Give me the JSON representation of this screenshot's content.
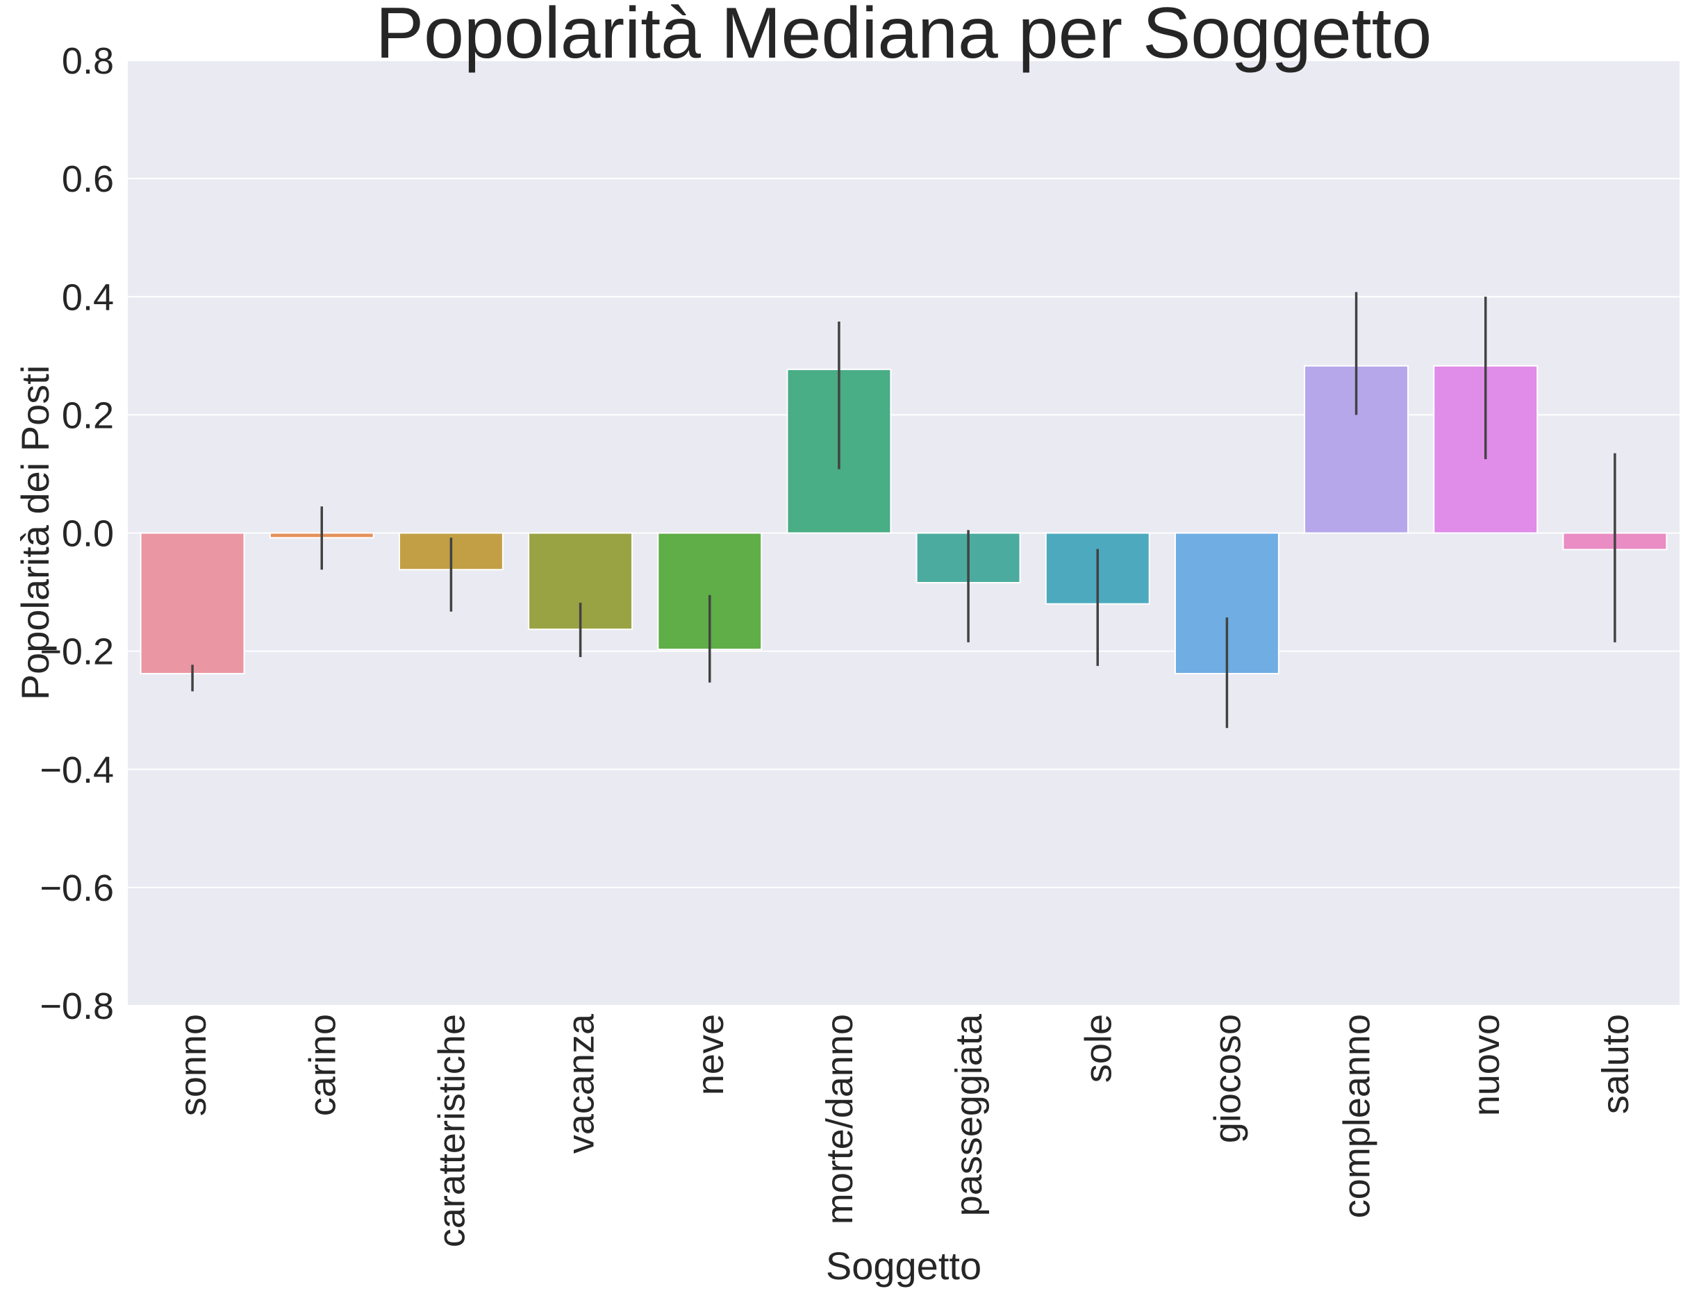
{
  "chart_data": {
    "type": "bar",
    "title": "Popolarità Mediana per Soggetto",
    "xlabel": "Soggetto",
    "ylabel": "Popolarità dei Posti",
    "ylim": [
      -0.8,
      0.8
    ],
    "yticks": [
      0.8,
      0.6,
      0.4,
      0.2,
      0.0,
      -0.2,
      -0.4,
      -0.6,
      -0.8
    ],
    "ytick_labels": [
      "0.8",
      "0.6",
      "0.4",
      "0.2",
      "0.0",
      "−0.2",
      "−0.4",
      "−0.6",
      "−0.8"
    ],
    "grid": true,
    "categories": [
      "sonno",
      "carino",
      "caratteristiche",
      "vacanza",
      "neve",
      "morte/danno",
      "passeggiata",
      "sole",
      "giocoso",
      "compleanno",
      "nuovo",
      "saluto"
    ],
    "values": [
      -0.238,
      -0.008,
      -0.062,
      -0.163,
      -0.197,
      0.277,
      -0.084,
      -0.12,
      -0.238,
      0.283,
      0.283,
      -0.028
    ],
    "error_bars": [
      [
        -0.268,
        -0.223
      ],
      [
        -0.062,
        0.045
      ],
      [
        -0.133,
        -0.008
      ],
      [
        -0.21,
        -0.118
      ],
      [
        -0.253,
        -0.105
      ],
      [
        0.108,
        0.358
      ],
      [
        -0.185,
        0.005
      ],
      [
        -0.225,
        -0.027
      ],
      [
        -0.33,
        -0.143
      ],
      [
        0.2,
        0.408
      ],
      [
        0.125,
        0.4
      ],
      [
        -0.185,
        0.135
      ]
    ],
    "colors": [
      "#ea96a3",
      "#e5915b",
      "#c29f45",
      "#9aa344",
      "#5fae47",
      "#49ad85",
      "#4bab9f",
      "#4daabe",
      "#6fade3",
      "#b6a7eb",
      "#e08ce9",
      "#e98dc4"
    ]
  }
}
